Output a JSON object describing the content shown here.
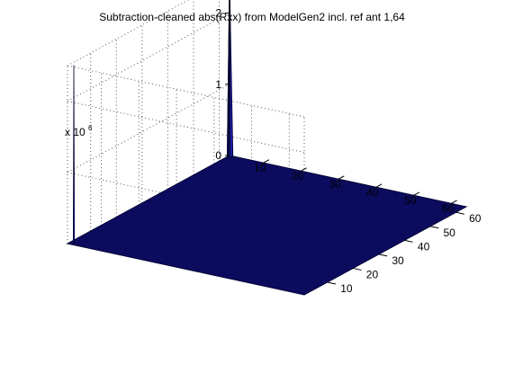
{
  "chart_data": {
    "type": "surface",
    "title": "Subtraction-cleaned abs(Rxx) from ModelGen2 incl. ref ant 1,64",
    "xlabel": "",
    "ylabel": "",
    "zlabel": "",
    "z_multiplier_label": "x 10",
    "z_multiplier_exponent": "6",
    "x_axis": {
      "range": [
        1,
        64
      ],
      "ticks": [
        10,
        20,
        30,
        40,
        50,
        60
      ]
    },
    "y_axis": {
      "range": [
        1,
        64
      ],
      "ticks": [
        10,
        20,
        30,
        40,
        50,
        60
      ]
    },
    "z_axis": {
      "range": [
        0,
        2.5
      ],
      "ticks": [
        0,
        1,
        2
      ],
      "units_scale": 1000000
    },
    "grid": true,
    "surface": {
      "baseline_value": 0,
      "peaks": [
        {
          "x": 1,
          "y": 64,
          "value": 2.5
        }
      ]
    },
    "colors": {
      "surface": "#10106e",
      "surface_edge": "#000033",
      "peak": "#1a1aa0",
      "grid": "#555555",
      "axis": "#000000"
    }
  }
}
